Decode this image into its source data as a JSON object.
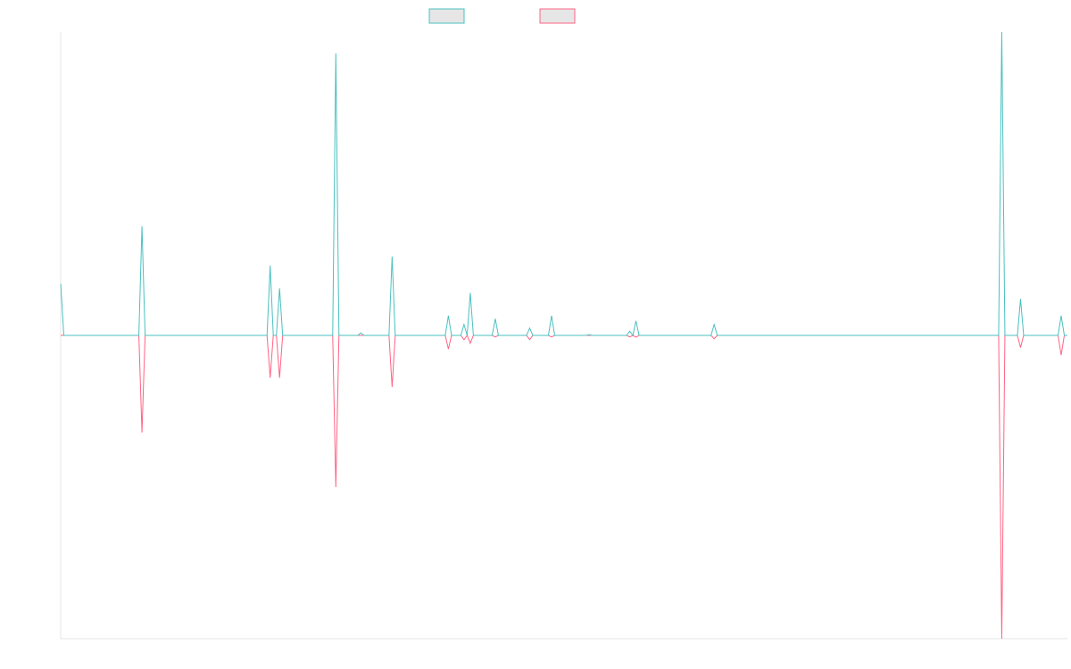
{
  "chart_data": {
    "type": "line",
    "title": "",
    "xlabel": "",
    "ylabel": "",
    "grid": false,
    "legend_placement": "top-center",
    "ylim": [
      -100,
      100
    ],
    "x": [
      0,
      1,
      2,
      3,
      4,
      5,
      6,
      7,
      8,
      9,
      10,
      11,
      12,
      13,
      14,
      15,
      16,
      17,
      18,
      19,
      20,
      21,
      22,
      23,
      24,
      25,
      26,
      27,
      28,
      29,
      30,
      31,
      32,
      33,
      34,
      35,
      36,
      37,
      38,
      39,
      40,
      41,
      42,
      43,
      44,
      45,
      46,
      47,
      48,
      49,
      50,
      51,
      52,
      53,
      54,
      55,
      56,
      57,
      58,
      59,
      60,
      61,
      62,
      63,
      64,
      65,
      66,
      67,
      68,
      69,
      70,
      71,
      72,
      73,
      74,
      75,
      76,
      77,
      78,
      79,
      80,
      81,
      82,
      83,
      84,
      85,
      86,
      87,
      88,
      89,
      90,
      91,
      92,
      93,
      94,
      95,
      96,
      97,
      98,
      99,
      100,
      101,
      102,
      103,
      104,
      105,
      106,
      107,
      108,
      109,
      110,
      111,
      112,
      113,
      114,
      115,
      116,
      117,
      118,
      119,
      120,
      121,
      122,
      123,
      124,
      125,
      126,
      127,
      128,
      129,
      130,
      131,
      132,
      133,
      134,
      135,
      136,
      137,
      138,
      139,
      140,
      141,
      142,
      143,
      144,
      145,
      146,
      147,
      148,
      149,
      150,
      151,
      152,
      153,
      154,
      155,
      156,
      157,
      158,
      159,
      160,
      161,
      162,
      163,
      164,
      165,
      166,
      167,
      168,
      169,
      170,
      171,
      172,
      173,
      174,
      175,
      176,
      177,
      178,
      179,
      180,
      181,
      182,
      183,
      184,
      185,
      186,
      187,
      188,
      189,
      190,
      191,
      192,
      193,
      194,
      195,
      196,
      197,
      198,
      199,
      200,
      201,
      202,
      203,
      204,
      205,
      206,
      207,
      208,
      209,
      210,
      211,
      212,
      213,
      214,
      215,
      216,
      217,
      218,
      219,
      220,
      221,
      222,
      223,
      224,
      225,
      226,
      227,
      228,
      229,
      230,
      231,
      232,
      233,
      234,
      235,
      236,
      237,
      238,
      239,
      240,
      241,
      242,
      243,
      244,
      245,
      246,
      247,
      248,
      249,
      250,
      251,
      252,
      253,
      254,
      255,
      256,
      257,
      258,
      259,
      260,
      261,
      262,
      263,
      264,
      265,
      266,
      267,
      268,
      269,
      270,
      271,
      272,
      273,
      274,
      275,
      276,
      277,
      278,
      279,
      280,
      281,
      282,
      283,
      284,
      285,
      286,
      287,
      288,
      289,
      290,
      291,
      292,
      293,
      294,
      295,
      296,
      297,
      298,
      299,
      300,
      301,
      302,
      303,
      304,
      305,
      306,
      307,
      308,
      309,
      310,
      311,
      312,
      313,
      314,
      315,
      316,
      317,
      318,
      319,
      320,
      321,
      322
    ],
    "spikes_positive": [
      [
        0,
        17
      ],
      [
        26,
        36
      ],
      [
        67,
        23
      ],
      [
        70,
        15.5
      ],
      [
        88,
        93
      ],
      [
        96,
        0.8
      ],
      [
        106,
        26
      ],
      [
        124,
        6.5
      ],
      [
        129,
        3.6
      ],
      [
        131,
        14
      ],
      [
        139,
        5.5
      ],
      [
        150,
        2.4
      ],
      [
        157,
        6.5
      ],
      [
        169,
        0.2
      ],
      [
        182,
        1.4
      ],
      [
        184,
        4.8
      ],
      [
        209,
        3.6
      ],
      [
        301,
        100
      ],
      [
        307,
        12
      ],
      [
        320,
        6.5
      ]
    ],
    "spikes_negative": [
      [
        26,
        -32
      ],
      [
        67,
        -14
      ],
      [
        70,
        -14
      ],
      [
        88,
        -50
      ],
      [
        106,
        -17
      ],
      [
        124,
        -4.5
      ],
      [
        129,
        -1.4
      ],
      [
        131,
        -2.6
      ],
      [
        139,
        -0.5
      ],
      [
        150,
        -1.4
      ],
      [
        157,
        -0.5
      ],
      [
        182,
        -0.5
      ],
      [
        184,
        -0.6
      ],
      [
        209,
        -1.1
      ],
      [
        301,
        -100
      ],
      [
        307,
        -4
      ],
      [
        320,
        -6.5
      ]
    ],
    "series": [
      {
        "color": "#4bc0c0"
      },
      {
        "color": "#ff6384"
      }
    ],
    "legend_fill": "#e6e6e6",
    "axis_color": "#e6e6e6"
  }
}
